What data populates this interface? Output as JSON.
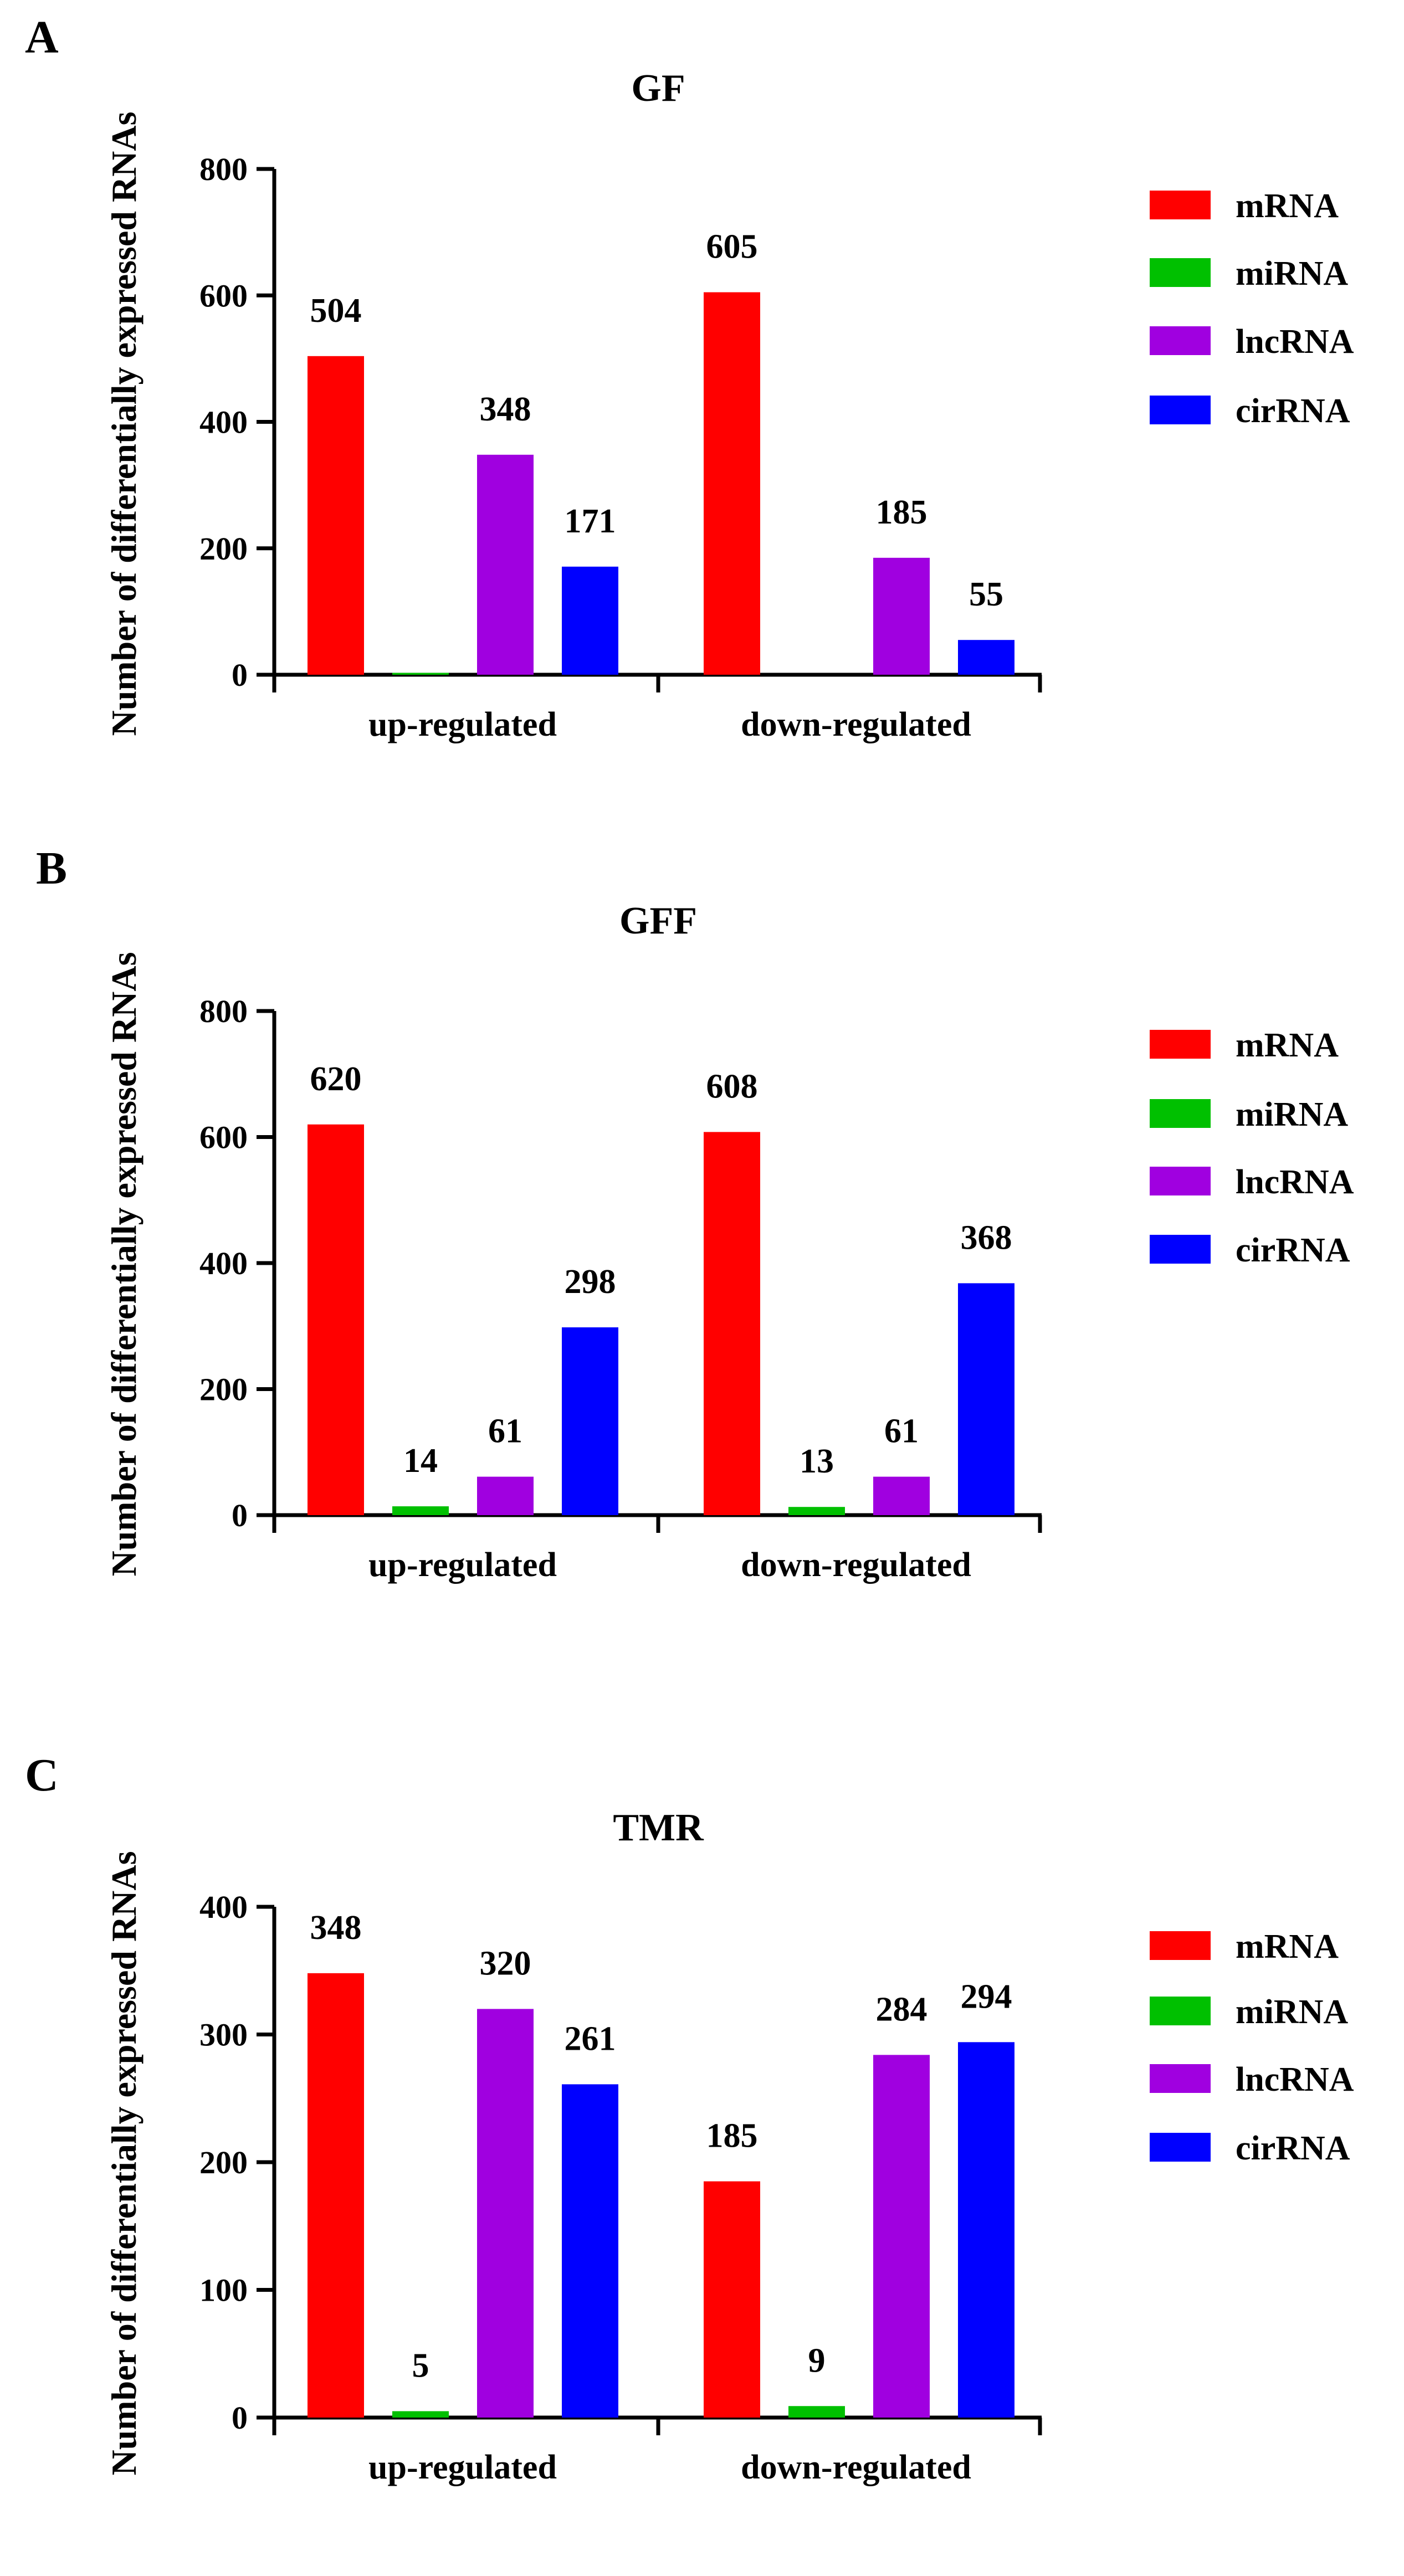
{
  "chart_data": [
    {
      "type": "bar",
      "panel": "A",
      "title": "GF",
      "xlabel": "",
      "ylabel": "Number of differentially expressed RNAs",
      "ylim": [
        0,
        800
      ],
      "yticks": [
        0,
        200,
        400,
        600,
        800
      ],
      "categories": [
        "up-regulated",
        "down-regulated"
      ],
      "legend": "right",
      "series": [
        {
          "name": "mRNA",
          "color": "#ff0000",
          "values": [
            504,
            605
          ],
          "labels": [
            "504",
            "605"
          ]
        },
        {
          "name": "miRNA",
          "color": "#00c000",
          "values": [
            3,
            0
          ],
          "labels": [
            "",
            ""
          ]
        },
        {
          "name": "lncRNA",
          "color": "#a000e0",
          "values": [
            348,
            185
          ],
          "labels": [
            "348",
            "185"
          ]
        },
        {
          "name": "cirRNA",
          "color": "#0000ff",
          "values": [
            171,
            55
          ],
          "labels": [
            "171",
            "55"
          ]
        }
      ]
    },
    {
      "type": "bar",
      "panel": "B",
      "title": "GFF",
      "xlabel": "",
      "ylabel": "Number of differentially expressed RNAs",
      "ylim": [
        0,
        800
      ],
      "yticks": [
        0,
        200,
        400,
        600,
        800
      ],
      "categories": [
        "up-regulated",
        "down-regulated"
      ],
      "legend": "right",
      "series": [
        {
          "name": "mRNA",
          "color": "#ff0000",
          "values": [
            620,
            608
          ],
          "labels": [
            "620",
            "608"
          ]
        },
        {
          "name": "miRNA",
          "color": "#00c000",
          "values": [
            14,
            13
          ],
          "labels": [
            "14",
            "13"
          ]
        },
        {
          "name": "lncRNA",
          "color": "#a000e0",
          "values": [
            61,
            61
          ],
          "labels": [
            "61",
            "61"
          ]
        },
        {
          "name": "cirRNA",
          "color": "#0000ff",
          "values": [
            298,
            368
          ],
          "labels": [
            "298",
            "368"
          ]
        }
      ]
    },
    {
      "type": "bar",
      "panel": "C",
      "title": "TMR",
      "xlabel": "",
      "ylabel": "Number of differentially expressed RNAs",
      "ylim": [
        0,
        400
      ],
      "yticks": [
        0,
        100,
        200,
        300,
        400
      ],
      "categories": [
        "up-regulated",
        "down-regulated"
      ],
      "legend": "right",
      "series": [
        {
          "name": "mRNA",
          "color": "#ff0000",
          "values": [
            348,
            185
          ],
          "labels": [
            "348",
            "185"
          ]
        },
        {
          "name": "miRNA",
          "color": "#00c000",
          "values": [
            5,
            9
          ],
          "labels": [
            "5",
            "9"
          ]
        },
        {
          "name": "lncRNA",
          "color": "#a000e0",
          "values": [
            320,
            284
          ],
          "labels": [
            "320",
            "284"
          ]
        },
        {
          "name": "cirRNA",
          "color": "#0000ff",
          "values": [
            261,
            294
          ],
          "labels": [
            "261",
            "294"
          ]
        }
      ]
    }
  ]
}
